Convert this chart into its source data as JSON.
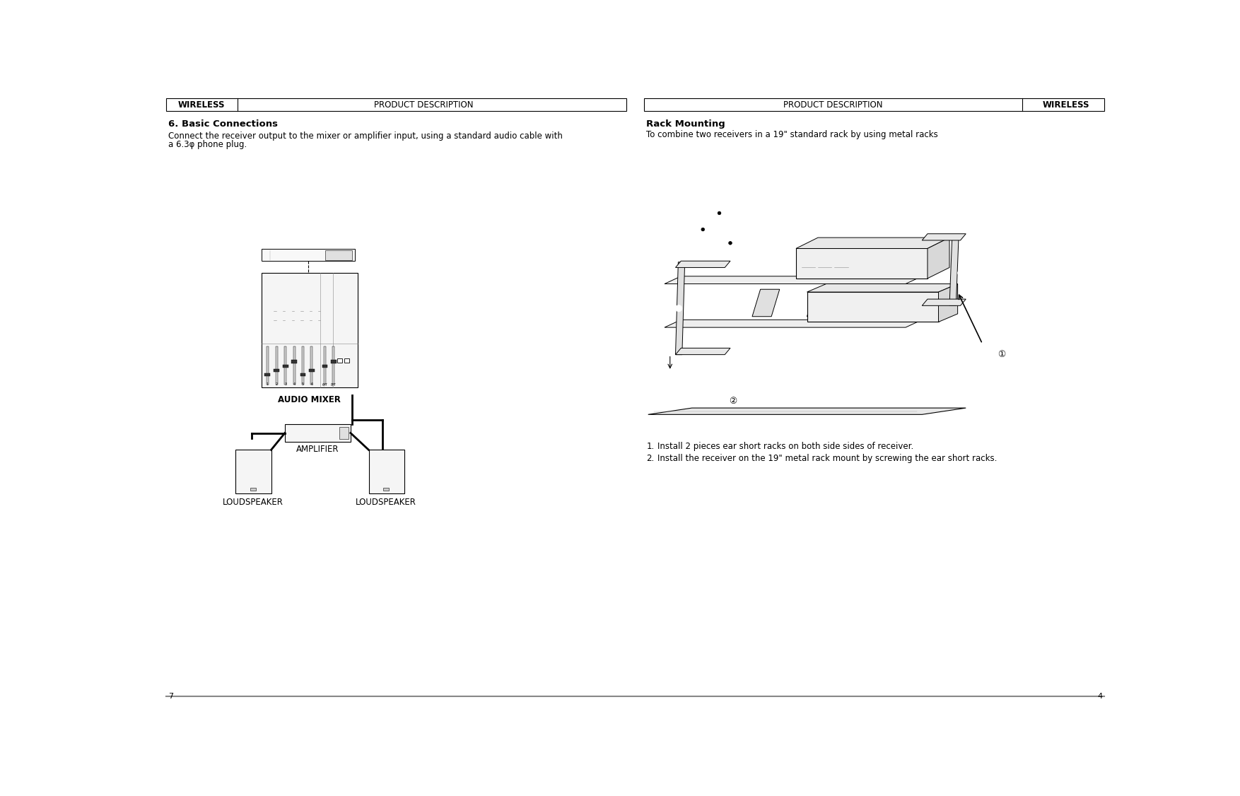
{
  "bg_color": "#ffffff",
  "border_color": "#000000",
  "header_left_wireless": "WIRELESS",
  "header_left_desc": "PRODUCT DESCRIPTION",
  "header_right_desc": "PRODUCT DESCRIPTION",
  "header_right_wireless": "WIRELESS",
  "section1_title": "6. Basic Connections",
  "section1_body1": "Connect the receiver output to the mixer or amplifier input, using a standard audio cable with",
  "section1_body2": "a 6.3φ phone plug.",
  "section2_title": "Rack Mounting",
  "section2_body": "To combine two receivers in a 19\" standard rack by using metal racks",
  "list_item1_num": "1.",
  "list_item1_text": "Install 2 pieces ear short racks on both side sides of receiver.",
  "list_item2_num": "2.",
  "list_item2_text": "Install the receiver on the 19\" metal rack mount by screwing the ear short racks.",
  "label_mixer": "AUDIO MIXER",
  "label_amp": "AMPLIFIER",
  "label_ls1": "LOUDSPEAKER",
  "label_ls2": "LOUDSPEAKER",
  "page_left": "7",
  "page_right": "4",
  "divider_color": "#888888",
  "text_color": "#000000",
  "body_fontsize": 8.5,
  "header_fontsize": 8.5,
  "label_fontsize": 8.5
}
